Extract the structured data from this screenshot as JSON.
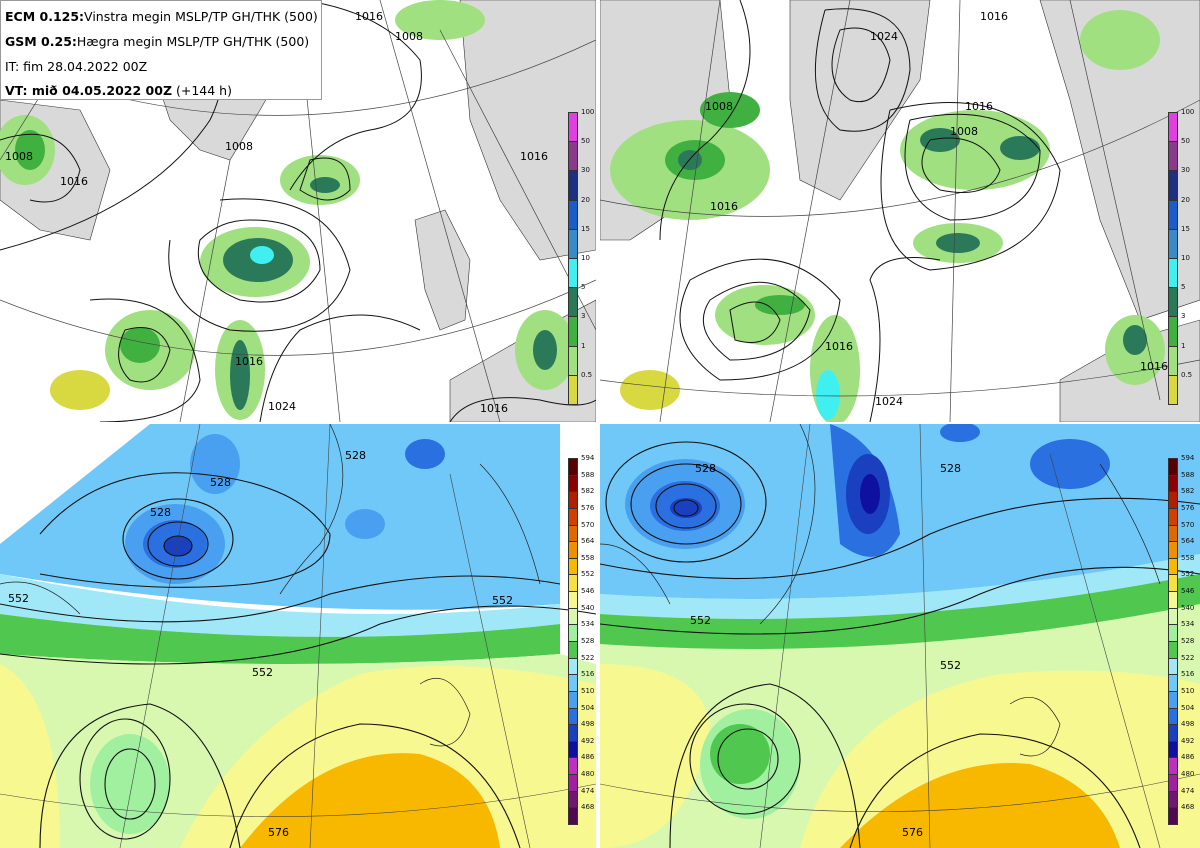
{
  "info": {
    "line1_bold": "ECM 0.125:",
    "line1_text": "Vinstra megin MSLP/TP GH/THK (500)",
    "line2_bold": "GSM 0.25:",
    "line2_text": "Hægra megin MSLP/TP GH/THK (500)",
    "line3_text": "IT: fim 28.04.2022 00Z",
    "line4_bold": "VT: mið 04.05.2022 00Z",
    "line4_text": " (+144 h)"
  },
  "precip_colorbar": {
    "labels": [
      "100",
      "50",
      "30",
      "20",
      "15",
      "10",
      "5",
      "3",
      "1",
      "0.5"
    ],
    "colors": [
      "#e040e0",
      "#8a3a8a",
      "#203080",
      "#1c5cc8",
      "#3a8ac8",
      "#40f0f0",
      "#2a7a5a",
      "#40b040",
      "#a0e080",
      "#d8d840"
    ]
  },
  "thk_colorbar": {
    "labels": [
      "594",
      "588",
      "582",
      "576",
      "570",
      "564",
      "558",
      "552",
      "546",
      "540",
      "534",
      "528",
      "522",
      "516",
      "510",
      "504",
      "498",
      "492",
      "486",
      "480",
      "474",
      "468"
    ],
    "colors": [
      "#5a0000",
      "#8a0000",
      "#b02000",
      "#d04000",
      "#e06800",
      "#f09000",
      "#f8b800",
      "#f8e040",
      "#f8f890",
      "#d8f8b0",
      "#a0f0a0",
      "#50c850",
      "#a0e8f8",
      "#70c8f8",
      "#4aa0f0",
      "#2a70e0",
      "#1a40c0",
      "#1010a0",
      "#c030c0",
      "#a020a0",
      "#701870",
      "#500850"
    ]
  },
  "isobar_labels": {
    "tl": [
      "1008",
      "1016",
      "1008",
      "1016",
      "1016",
      "1008",
      "1016",
      "1024",
      "1016"
    ],
    "tr": [
      "1008",
      "1016",
      "1016",
      "1008",
      "1016",
      "1024",
      "1016",
      "1024",
      "1016"
    ],
    "bl": [
      "528",
      "528",
      "528",
      "552",
      "552",
      "552",
      "576"
    ],
    "br": [
      "528",
      "528",
      "552",
      "552",
      "576"
    ]
  }
}
